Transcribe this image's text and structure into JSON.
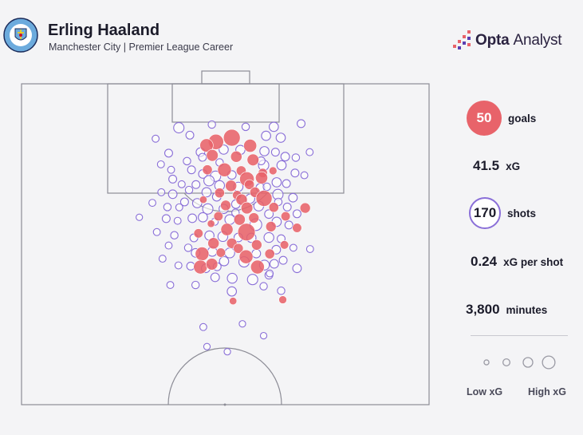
{
  "header": {
    "title": "Erling Haaland",
    "subtitle": "Manchester City | Premier League Career",
    "crest_text": "MANCHESTER CITY",
    "brand": {
      "name_bold": "Opta",
      "name_light": "Analyst"
    }
  },
  "stats": {
    "goals": {
      "value": "50",
      "label": "goals"
    },
    "xg": {
      "value": "41.5",
      "label": "xG"
    },
    "shots": {
      "value": "170",
      "label": "shots"
    },
    "xg_per_shot": {
      "value": "0.24",
      "label": "xG per shot"
    },
    "minutes": {
      "value": "3,800",
      "label": "minutes"
    }
  },
  "legend": {
    "low": "Low xG",
    "high": "High xG",
    "sizes": [
      0.03,
      0.1,
      0.25,
      0.5
    ]
  },
  "colors": {
    "goal": "#e8636a",
    "shot_stroke": "#8a6fd8",
    "pitch_line": "#8c8c96",
    "background": "#f4f4f6",
    "crest_blue": "#6cabdd"
  },
  "chart_data": {
    "type": "scatter",
    "title": "Erling Haaland",
    "subtitle": "Manchester City | Premier League Career",
    "xlabel": "",
    "ylabel": "",
    "pitch": "half-pitch, attacking goal at top",
    "legend_placement": "bottom-right",
    "series": [
      {
        "name": "goals",
        "points": [
          {
            "x": 51.6,
            "y": 16.8,
            "xg": 0.5
          },
          {
            "x": 47.7,
            "y": 18.1,
            "xg": 0.4
          },
          {
            "x": 45.4,
            "y": 19.2,
            "xg": 0.28
          },
          {
            "x": 56.1,
            "y": 19.3,
            "xg": 0.26
          },
          {
            "x": 46.8,
            "y": 22.3,
            "xg": 0.2
          },
          {
            "x": 52.7,
            "y": 22.7,
            "xg": 0.18
          },
          {
            "x": 56.8,
            "y": 23.7,
            "xg": 0.2
          },
          {
            "x": 45.6,
            "y": 26.8,
            "xg": 0.12
          },
          {
            "x": 49.8,
            "y": 26.8,
            "xg": 0.3
          },
          {
            "x": 53.9,
            "y": 27.1,
            "xg": 0.12
          },
          {
            "x": 59.2,
            "y": 27.8,
            "xg": 0.1
          },
          {
            "x": 61.7,
            "y": 27.1,
            "xg": 0.06
          },
          {
            "x": 55.3,
            "y": 29.7,
            "xg": 0.35
          },
          {
            "x": 58.9,
            "y": 29.3,
            "xg": 0.22
          },
          {
            "x": 51.4,
            "y": 31.8,
            "xg": 0.18
          },
          {
            "x": 55.9,
            "y": 31.4,
            "xg": 0.12
          },
          {
            "x": 48.6,
            "y": 34.0,
            "xg": 0.12
          },
          {
            "x": 52.9,
            "y": 34.7,
            "xg": 0.1
          },
          {
            "x": 57.3,
            "y": 33.8,
            "xg": 0.14
          },
          {
            "x": 54.0,
            "y": 36.1,
            "xg": 0.18
          },
          {
            "x": 59.5,
            "y": 35.7,
            "xg": 0.45
          },
          {
            "x": 50.1,
            "y": 37.9,
            "xg": 0.14
          },
          {
            "x": 55.3,
            "y": 38.7,
            "xg": 0.2
          },
          {
            "x": 61.9,
            "y": 38.5,
            "xg": 0.12
          },
          {
            "x": 48.3,
            "y": 41.3,
            "xg": 0.1
          },
          {
            "x": 53.5,
            "y": 42.3,
            "xg": 0.18
          },
          {
            "x": 57.0,
            "y": 41.8,
            "xg": 0.14
          },
          {
            "x": 64.8,
            "y": 41.3,
            "xg": 0.1
          },
          {
            "x": 69.6,
            "y": 38.7,
            "xg": 0.14
          },
          {
            "x": 46.5,
            "y": 43.6,
            "xg": 0.05
          },
          {
            "x": 50.4,
            "y": 45.4,
            "xg": 0.22
          },
          {
            "x": 55.2,
            "y": 46.2,
            "xg": 0.55
          },
          {
            "x": 61.2,
            "y": 44.5,
            "xg": 0.14
          },
          {
            "x": 67.6,
            "y": 44.9,
            "xg": 0.1
          },
          {
            "x": 43.4,
            "y": 46.6,
            "xg": 0.1
          },
          {
            "x": 47.1,
            "y": 49.7,
            "xg": 0.18
          },
          {
            "x": 51.6,
            "y": 49.7,
            "xg": 0.14
          },
          {
            "x": 53.2,
            "y": 51.3,
            "xg": 0.12
          },
          {
            "x": 57.7,
            "y": 50.2,
            "xg": 0.14
          },
          {
            "x": 64.5,
            "y": 50.2,
            "xg": 0.08
          },
          {
            "x": 44.3,
            "y": 53.0,
            "xg": 0.3
          },
          {
            "x": 48.9,
            "y": 52.6,
            "xg": 0.1
          },
          {
            "x": 55.1,
            "y": 53.9,
            "xg": 0.3
          },
          {
            "x": 60.9,
            "y": 53.0,
            "xg": 0.12
          },
          {
            "x": 43.9,
            "y": 57.1,
            "xg": 0.3
          },
          {
            "x": 46.7,
            "y": 56.2,
            "xg": 0.2
          },
          {
            "x": 57.9,
            "y": 57.1,
            "xg": 0.3
          },
          {
            "x": 51.9,
            "y": 67.7,
            "xg": 0.05
          },
          {
            "x": 64.1,
            "y": 67.3,
            "xg": 0.06
          },
          {
            "x": 44.6,
            "y": 36.1,
            "xg": 0.05
          }
        ]
      },
      {
        "name": "shots",
        "points": [
          {
            "x": 38.6,
            "y": 13.7,
            "xg": 0.14
          },
          {
            "x": 46.7,
            "y": 12.7,
            "xg": 0.05
          },
          {
            "x": 55.0,
            "y": 13.4,
            "xg": 0.05
          },
          {
            "x": 61.9,
            "y": 13.4,
            "xg": 0.1
          },
          {
            "x": 68.6,
            "y": 12.4,
            "xg": 0.06
          },
          {
            "x": 41.3,
            "y": 16.0,
            "xg": 0.06
          },
          {
            "x": 60.0,
            "y": 16.2,
            "xg": 0.1
          },
          {
            "x": 63.6,
            "y": 16.8,
            "xg": 0.1
          },
          {
            "x": 32.9,
            "y": 17.1,
            "xg": 0.04
          },
          {
            "x": 43.9,
            "y": 21.3,
            "xg": 0.08
          },
          {
            "x": 49.6,
            "y": 20.5,
            "xg": 0.1
          },
          {
            "x": 53.7,
            "y": 20.6,
            "xg": 0.1
          },
          {
            "x": 59.6,
            "y": 21.0,
            "xg": 0.1
          },
          {
            "x": 62.3,
            "y": 21.3,
            "xg": 0.06
          },
          {
            "x": 64.7,
            "y": 22.7,
            "xg": 0.08
          },
          {
            "x": 67.3,
            "y": 23.0,
            "xg": 0.05
          },
          {
            "x": 70.7,
            "y": 21.3,
            "xg": 0.04
          },
          {
            "x": 36.1,
            "y": 21.6,
            "xg": 0.06
          },
          {
            "x": 40.6,
            "y": 24.1,
            "xg": 0.05
          },
          {
            "x": 34.2,
            "y": 25.1,
            "xg": 0.04
          },
          {
            "x": 36.7,
            "y": 26.8,
            "xg": 0.04
          },
          {
            "x": 41.7,
            "y": 26.8,
            "xg": 0.06
          },
          {
            "x": 44.5,
            "y": 28.1,
            "xg": 0.08
          },
          {
            "x": 47.6,
            "y": 28.8,
            "xg": 0.14
          },
          {
            "x": 51.6,
            "y": 28.4,
            "xg": 0.08
          },
          {
            "x": 59.4,
            "y": 25.4,
            "xg": 0.14
          },
          {
            "x": 63.8,
            "y": 25.4,
            "xg": 0.1
          },
          {
            "x": 67.1,
            "y": 27.8,
            "xg": 0.06
          },
          {
            "x": 69.4,
            "y": 28.5,
            "xg": 0.04
          },
          {
            "x": 37.1,
            "y": 29.7,
            "xg": 0.06
          },
          {
            "x": 39.3,
            "y": 31.3,
            "xg": 0.04
          },
          {
            "x": 42.8,
            "y": 31.4,
            "xg": 0.06
          },
          {
            "x": 46.0,
            "y": 30.2,
            "xg": 0.14
          },
          {
            "x": 48.6,
            "y": 31.7,
            "xg": 0.12
          },
          {
            "x": 53.2,
            "y": 32.1,
            "xg": 0.1
          },
          {
            "x": 58.6,
            "y": 32.4,
            "xg": 0.08
          },
          {
            "x": 62.6,
            "y": 30.7,
            "xg": 0.1
          },
          {
            "x": 65.0,
            "y": 31.1,
            "xg": 0.06
          },
          {
            "x": 34.3,
            "y": 33.8,
            "xg": 0.04
          },
          {
            "x": 37.1,
            "y": 34.4,
            "xg": 0.08
          },
          {
            "x": 41.1,
            "y": 33.1,
            "xg": 0.05
          },
          {
            "x": 45.4,
            "y": 33.8,
            "xg": 0.1
          },
          {
            "x": 47.9,
            "y": 35.2,
            "xg": 0.08
          },
          {
            "x": 56.1,
            "y": 35.8,
            "xg": 0.1
          },
          {
            "x": 62.9,
            "y": 34.5,
            "xg": 0.14
          },
          {
            "x": 66.6,
            "y": 35.5,
            "xg": 0.08
          },
          {
            "x": 32.1,
            "y": 37.1,
            "xg": 0.04
          },
          {
            "x": 35.8,
            "y": 38.4,
            "xg": 0.05
          },
          {
            "x": 40.0,
            "y": 36.8,
            "xg": 0.06
          },
          {
            "x": 43.1,
            "y": 37.2,
            "xg": 0.1
          },
          {
            "x": 45.7,
            "y": 39.0,
            "xg": 0.14
          },
          {
            "x": 49.6,
            "y": 39.0,
            "xg": 0.1
          },
          {
            "x": 52.6,
            "y": 37.5,
            "xg": 0.08
          },
          {
            "x": 58.2,
            "y": 38.1,
            "xg": 0.12
          },
          {
            "x": 60.7,
            "y": 40.6,
            "xg": 0.08
          },
          {
            "x": 65.2,
            "y": 38.4,
            "xg": 0.06
          },
          {
            "x": 67.6,
            "y": 40.5,
            "xg": 0.06
          },
          {
            "x": 28.9,
            "y": 41.6,
            "xg": 0.03
          },
          {
            "x": 35.5,
            "y": 42.0,
            "xg": 0.06
          },
          {
            "x": 38.3,
            "y": 42.7,
            "xg": 0.04
          },
          {
            "x": 41.9,
            "y": 41.9,
            "xg": 0.08
          },
          {
            "x": 44.5,
            "y": 41.6,
            "xg": 0.1
          },
          {
            "x": 51.1,
            "y": 42.3,
            "xg": 0.12
          },
          {
            "x": 57.5,
            "y": 43.9,
            "xg": 0.2
          },
          {
            "x": 62.6,
            "y": 43.0,
            "xg": 0.1
          },
          {
            "x": 65.6,
            "y": 44.0,
            "xg": 0.06
          },
          {
            "x": 33.2,
            "y": 46.2,
            "xg": 0.04
          },
          {
            "x": 37.5,
            "y": 47.2,
            "xg": 0.05
          },
          {
            "x": 42.3,
            "y": 48.0,
            "xg": 0.06
          },
          {
            "x": 46.1,
            "y": 47.3,
            "xg": 0.1
          },
          {
            "x": 49.4,
            "y": 47.6,
            "xg": 0.12
          },
          {
            "x": 53.2,
            "y": 47.9,
            "xg": 0.08
          },
          {
            "x": 56.4,
            "y": 48.0,
            "xg": 0.1
          },
          {
            "x": 60.7,
            "y": 47.9,
            "xg": 0.12
          },
          {
            "x": 63.7,
            "y": 48.3,
            "xg": 0.06
          },
          {
            "x": 36.1,
            "y": 50.4,
            "xg": 0.04
          },
          {
            "x": 40.9,
            "y": 51.1,
            "xg": 0.05
          },
          {
            "x": 42.7,
            "y": 52.7,
            "xg": 0.08
          },
          {
            "x": 46.8,
            "y": 52.3,
            "xg": 0.1
          },
          {
            "x": 51.1,
            "y": 52.7,
            "xg": 0.12
          },
          {
            "x": 57.6,
            "y": 52.9,
            "xg": 0.08
          },
          {
            "x": 62.5,
            "y": 51.7,
            "xg": 0.08
          },
          {
            "x": 66.7,
            "y": 51.1,
            "xg": 0.04
          },
          {
            "x": 70.8,
            "y": 51.5,
            "xg": 0.04
          },
          {
            "x": 34.6,
            "y": 54.5,
            "xg": 0.04
          },
          {
            "x": 38.5,
            "y": 56.6,
            "xg": 0.04
          },
          {
            "x": 41.5,
            "y": 56.8,
            "xg": 0.06
          },
          {
            "x": 45.2,
            "y": 57.5,
            "xg": 0.08
          },
          {
            "x": 49.7,
            "y": 55.3,
            "xg": 0.1
          },
          {
            "x": 54.6,
            "y": 55.5,
            "xg": 0.14
          },
          {
            "x": 59.6,
            "y": 56.5,
            "xg": 0.12
          },
          {
            "x": 62.0,
            "y": 56.1,
            "xg": 0.08
          },
          {
            "x": 64.2,
            "y": 55.0,
            "xg": 0.06
          },
          {
            "x": 67.6,
            "y": 57.5,
            "xg": 0.08
          },
          {
            "x": 47.5,
            "y": 60.3,
            "xg": 0.08
          },
          {
            "x": 51.7,
            "y": 60.6,
            "xg": 0.12
          },
          {
            "x": 56.7,
            "y": 61.0,
            "xg": 0.14
          },
          {
            "x": 60.7,
            "y": 59.6,
            "xg": 0.06
          },
          {
            "x": 36.5,
            "y": 62.7,
            "xg": 0.04
          },
          {
            "x": 42.7,
            "y": 62.7,
            "xg": 0.05
          },
          {
            "x": 51.6,
            "y": 64.7,
            "xg": 0.1
          },
          {
            "x": 59.4,
            "y": 63.1,
            "xg": 0.05
          },
          {
            "x": 63.7,
            "y": 64.5,
            "xg": 0.05
          },
          {
            "x": 44.6,
            "y": 75.8,
            "xg": 0.04
          },
          {
            "x": 54.2,
            "y": 74.8,
            "xg": 0.03
          },
          {
            "x": 59.4,
            "y": 78.5,
            "xg": 0.03
          },
          {
            "x": 45.5,
            "y": 81.9,
            "xg": 0.03
          },
          {
            "x": 50.5,
            "y": 83.5,
            "xg": 0.03
          },
          {
            "x": 44.4,
            "y": 22.9,
            "xg": 0.06
          },
          {
            "x": 48.6,
            "y": 24.5,
            "xg": 0.05
          },
          {
            "x": 58.8,
            "y": 24.0,
            "xg": 0.06
          },
          {
            "x": 47.4,
            "y": 43.0,
            "xg": 0.04
          },
          {
            "x": 52.5,
            "y": 40.2,
            "xg": 0.05
          },
          {
            "x": 38.7,
            "y": 38.5,
            "xg": 0.04
          },
          {
            "x": 60.2,
            "y": 32.1,
            "xg": 0.05
          },
          {
            "x": 63.0,
            "y": 36.8,
            "xg": 0.05
          },
          {
            "x": 48.0,
            "y": 57.0,
            "xg": 0.06
          },
          {
            "x": 60.9,
            "y": 59.1,
            "xg": 0.04
          }
        ]
      }
    ]
  }
}
